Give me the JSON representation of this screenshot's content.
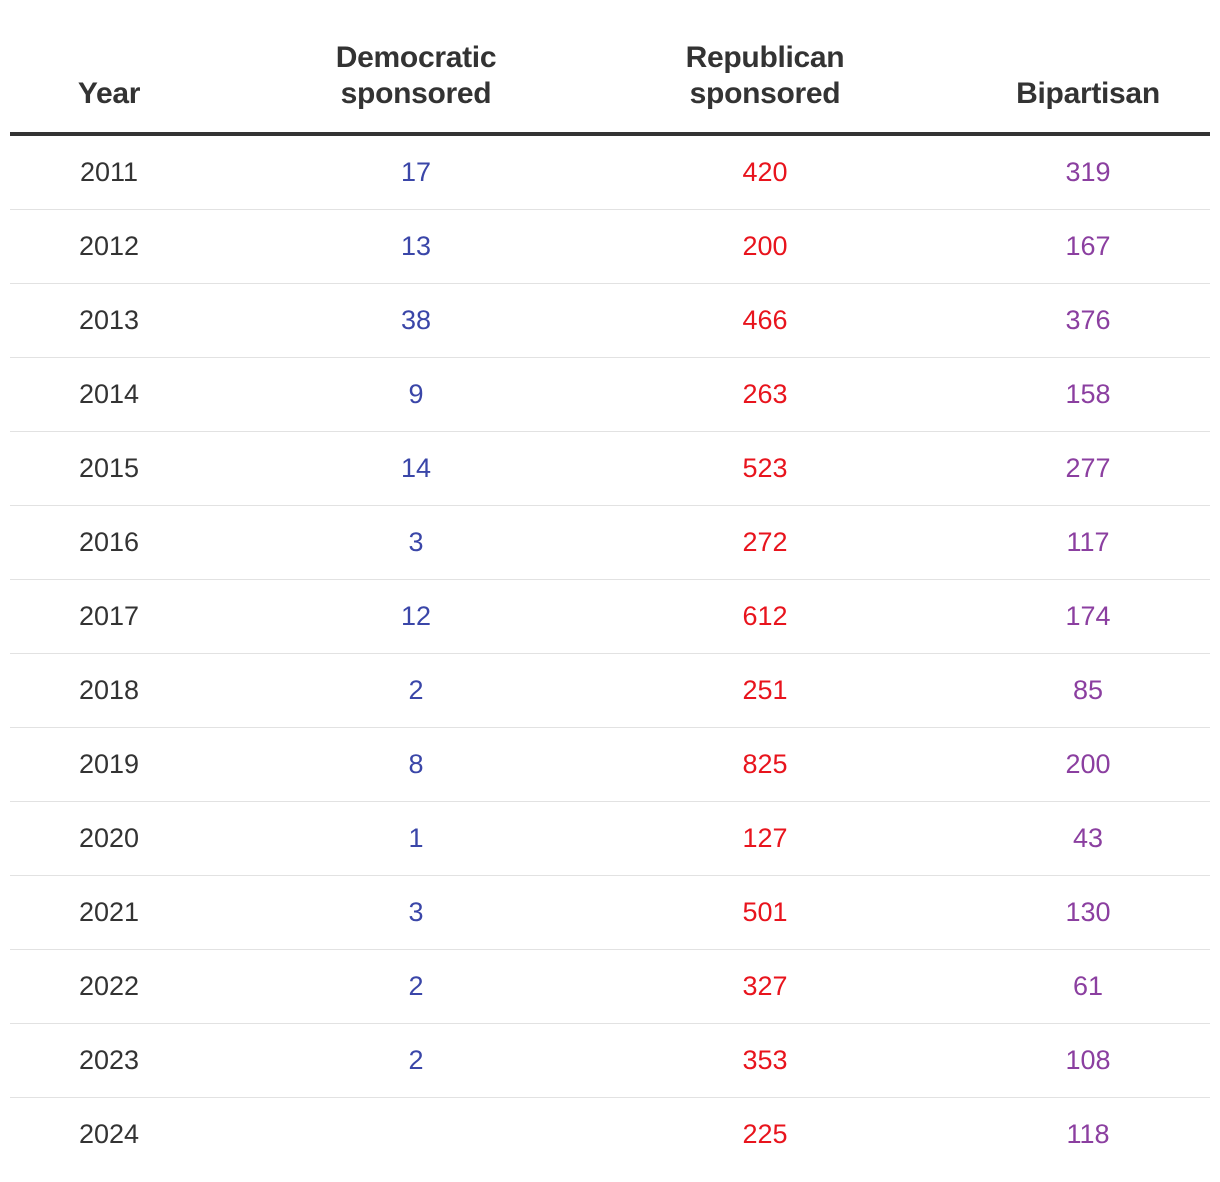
{
  "chart_data": {
    "type": "table",
    "columns": [
      "Year",
      "Democratic sponsored",
      "Republican sponsored",
      "Bipartisan"
    ],
    "header": {
      "year": [
        "Year"
      ],
      "democratic": [
        "Democratic",
        "sponsored"
      ],
      "republican": [
        "Republican",
        "sponsored"
      ],
      "bipartisan": [
        "Bipartisan"
      ]
    },
    "colors": {
      "democratic": "#3a46a8",
      "republican": "#e8141d",
      "bipartisan": "#8b3fa0",
      "text": "#333333"
    },
    "rows": [
      {
        "year": "2011",
        "democratic": "17",
        "republican": "420",
        "bipartisan": "319"
      },
      {
        "year": "2012",
        "democratic": "13",
        "republican": "200",
        "bipartisan": "167"
      },
      {
        "year": "2013",
        "democratic": "38",
        "republican": "466",
        "bipartisan": "376"
      },
      {
        "year": "2014",
        "democratic": "9",
        "republican": "263",
        "bipartisan": "158"
      },
      {
        "year": "2015",
        "democratic": "14",
        "republican": "523",
        "bipartisan": "277"
      },
      {
        "year": "2016",
        "democratic": "3",
        "republican": "272",
        "bipartisan": "117"
      },
      {
        "year": "2017",
        "democratic": "12",
        "republican": "612",
        "bipartisan": "174"
      },
      {
        "year": "2018",
        "democratic": "2",
        "republican": "251",
        "bipartisan": "85"
      },
      {
        "year": "2019",
        "democratic": "8",
        "republican": "825",
        "bipartisan": "200"
      },
      {
        "year": "2020",
        "democratic": "1",
        "republican": "127",
        "bipartisan": "43"
      },
      {
        "year": "2021",
        "democratic": "3",
        "republican": "501",
        "bipartisan": "130"
      },
      {
        "year": "2022",
        "democratic": "2",
        "republican": "327",
        "bipartisan": "61"
      },
      {
        "year": "2023",
        "democratic": "2",
        "republican": "353",
        "bipartisan": "108"
      },
      {
        "year": "2024",
        "democratic": "",
        "republican": "225",
        "bipartisan": "118"
      }
    ]
  }
}
